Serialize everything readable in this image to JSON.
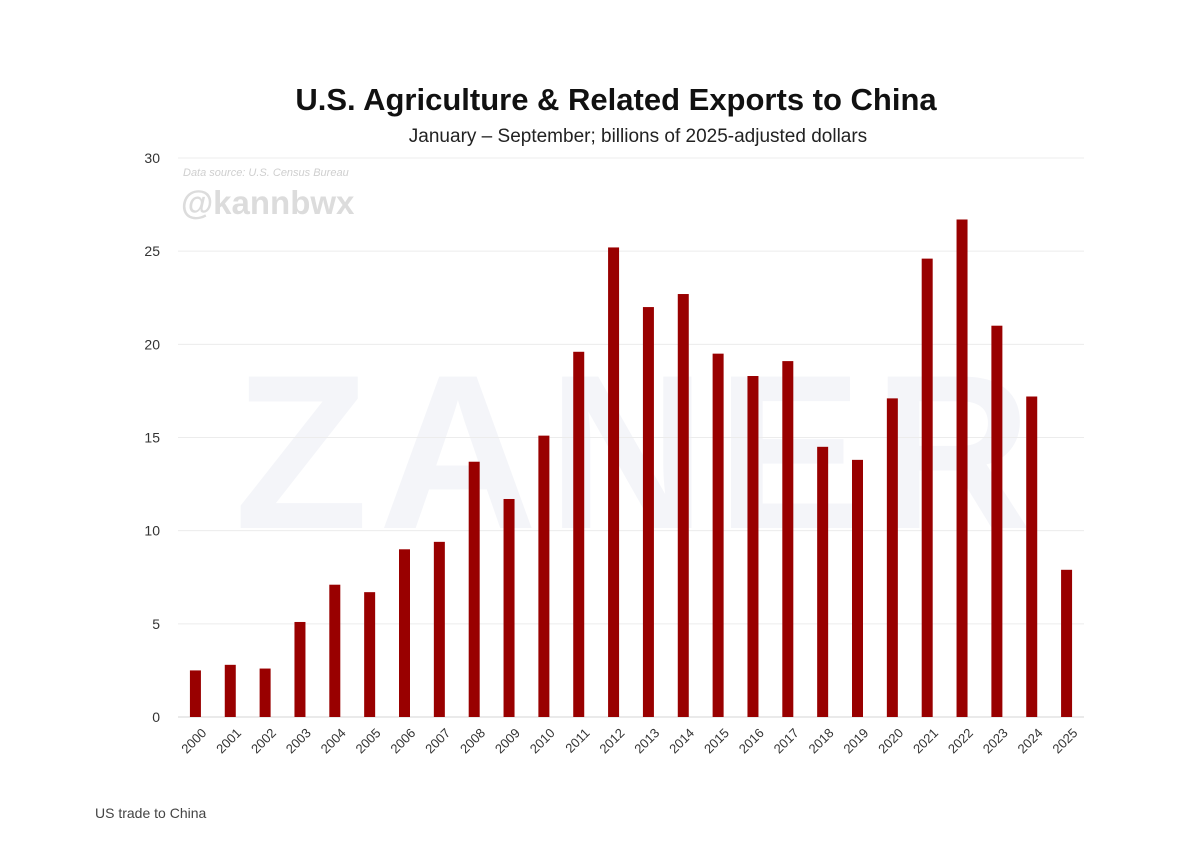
{
  "chart_data": {
    "type": "bar",
    "title": "U.S. Agriculture & Related Exports to China",
    "subtitle": "January – September; billions of 2025-adjusted dollars",
    "source_note": "Data source: U.S. Census Bureau",
    "watermark_handle": "@kannbwx",
    "watermark_logo": "ZANER",
    "categories": [
      "2000",
      "2001",
      "2002",
      "2003",
      "2004",
      "2005",
      "2006",
      "2007",
      "2008",
      "2009",
      "2010",
      "2011",
      "2012",
      "2013",
      "2014",
      "2015",
      "2016",
      "2017",
      "2018",
      "2019",
      "2020",
      "2021",
      "2022",
      "2023",
      "2024",
      "2025"
    ],
    "values": [
      2.5,
      2.8,
      2.6,
      5.1,
      7.1,
      6.7,
      9.0,
      9.4,
      13.7,
      11.7,
      15.1,
      19.6,
      25.2,
      22.0,
      22.7,
      19.5,
      18.3,
      19.1,
      14.5,
      13.8,
      17.1,
      24.6,
      26.7,
      21.0,
      17.2,
      7.9
    ],
    "ylim": [
      0,
      30
    ],
    "yticks": [
      "0",
      "5",
      "10",
      "15",
      "20",
      "25",
      "30"
    ],
    "xlabel": "",
    "ylabel": "",
    "grid": true,
    "bar_color": "#990000"
  },
  "caption": "US trade to China"
}
